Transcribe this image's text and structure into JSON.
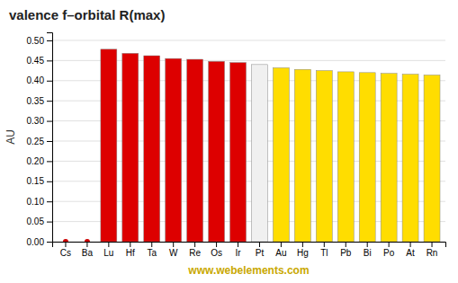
{
  "chart_data": {
    "type": "bar",
    "title": "valence f–orbital R(max)",
    "ylabel": "AU",
    "annotations": [
      "www.webelements.com"
    ],
    "categories": [
      "Cs",
      "Ba",
      "Lu",
      "Hf",
      "Ta",
      "W",
      "Re",
      "Os",
      "Ir",
      "Pt",
      "Au",
      "Hg",
      "Tl",
      "Pb",
      "Bi",
      "Po",
      "At",
      "Rn"
    ],
    "values": [
      0.0,
      0.0,
      0.478,
      0.468,
      0.462,
      0.455,
      0.453,
      0.448,
      0.445,
      0.44,
      0.432,
      0.428,
      0.425,
      0.422,
      0.42,
      0.418,
      0.416,
      0.414
    ],
    "colors": [
      "#cc0000",
      "#cc0000",
      "#dd0000",
      "#dd0000",
      "#dd0000",
      "#dd0000",
      "#dd0000",
      "#dd0000",
      "#dd0000",
      "#f0f0f0",
      "#ffdd00",
      "#ffdd00",
      "#ffdd00",
      "#ffdd00",
      "#ffdd00",
      "#ffdd00",
      "#ffdd00",
      "#ffdd00"
    ],
    "ylim": [
      0.0,
      0.52
    ],
    "yticks": [
      {
        "value": 0.0,
        "label": "0.00"
      },
      {
        "value": 0.05,
        "label": "0.05"
      },
      {
        "value": 0.1,
        "label": "0.10"
      },
      {
        "value": 0.15,
        "label": "0.15"
      },
      {
        "value": 0.2,
        "label": "0.20"
      },
      {
        "value": 0.25,
        "label": "0.25"
      },
      {
        "value": 0.3,
        "label": "0.30"
      },
      {
        "value": 0.35,
        "label": "0.35"
      },
      {
        "value": 0.4,
        "label": "0.40"
      },
      {
        "value": 0.45,
        "label": "0.45"
      },
      {
        "value": 0.5,
        "label": "0.50"
      }
    ],
    "grid": true
  }
}
